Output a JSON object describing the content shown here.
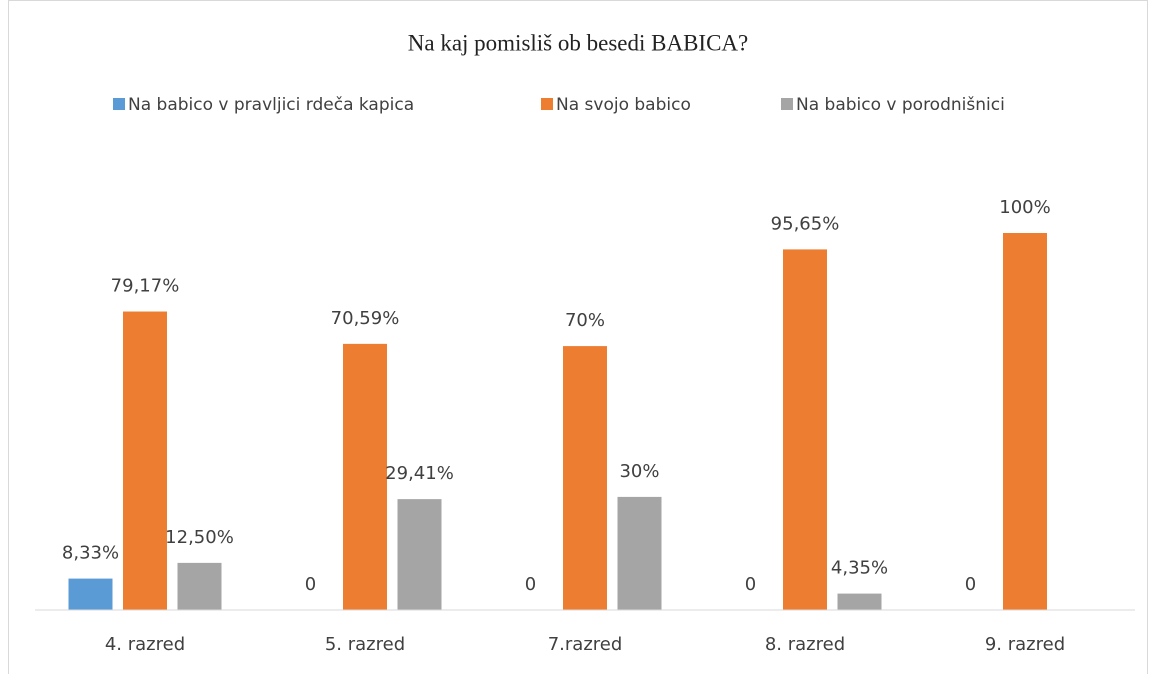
{
  "chart_data": {
    "type": "bar",
    "title": "Na kaj pomisliš ob besedi BABICA?",
    "categories": [
      "4. razred",
      "5. razred",
      "7.razred",
      "8. razred",
      "9. razred"
    ],
    "series": [
      {
        "name": "Na babico v pravljici rdeča kapica",
        "color": "#5b9bd5",
        "values": [
          8.33,
          0,
          0,
          0,
          0
        ],
        "value_labels": [
          "8,33%",
          "0",
          "0",
          "0",
          "0"
        ]
      },
      {
        "name": "Na svojo babico",
        "color": "#ed7d31",
        "values": [
          79.17,
          70.59,
          70,
          95.65,
          100
        ],
        "value_labels": [
          "79,17%",
          "70,59%",
          "70%",
          "95,65%",
          "100%"
        ]
      },
      {
        "name": "Na babico v porodnišnici",
        "color": "#a5a5a5",
        "values": [
          12.5,
          29.41,
          30,
          4.35,
          0
        ],
        "value_labels": [
          "12,50%",
          "29,41%",
          "30%",
          "4,35%",
          null
        ]
      }
    ],
    "ylim": [
      0,
      100
    ],
    "legend": "top"
  }
}
